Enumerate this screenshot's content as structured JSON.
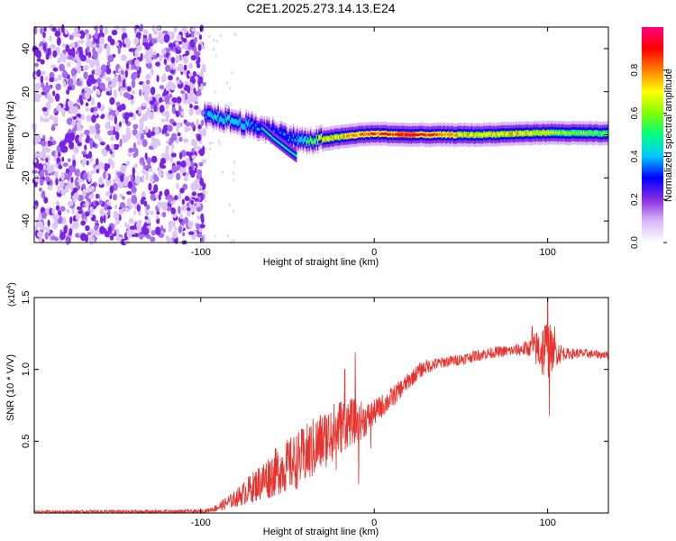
{
  "title": "C2E1.2025.273.14.13.E24",
  "chart_data": [
    {
      "type": "heatmap",
      "name": "spectrogram",
      "xlabel": "Height of straight line (km)",
      "ylabel": "Frequency (Hz)",
      "xlim": [
        -196,
        135
      ],
      "ylim": [
        -50,
        50
      ],
      "x_ticks": [
        -100,
        0,
        100
      ],
      "x_tick_labels": [
        "-100",
        "0",
        "100"
      ],
      "y_ticks": [
        -40,
        -20,
        0,
        20,
        40
      ],
      "y_tick_labels": [
        "-40",
        "-20",
        "0",
        "20",
        "40"
      ],
      "noise_region_x": [
        -196,
        -98
      ],
      "ridge": {
        "x": [
          -98,
          -90,
          -80,
          -70,
          -60,
          -50,
          -45,
          -40,
          -35,
          -30,
          -20,
          -10,
          0,
          20,
          40,
          60,
          80,
          100,
          135
        ],
        "freq": [
          9,
          8,
          6,
          4,
          2,
          -1,
          -2,
          -3,
          -3,
          -2,
          -1,
          0,
          0.5,
          0,
          0,
          0,
          0.5,
          1,
          0.5
        ],
        "amplitude": [
          0.4,
          0.45,
          0.45,
          0.4,
          0.35,
          0.3,
          0.4,
          0.5,
          0.6,
          0.7,
          0.75,
          0.8,
          0.85,
          0.9,
          0.8,
          0.7,
          0.7,
          0.65,
          0.55
        ]
      },
      "branch": {
        "x": [
          -65,
          -58,
          -50,
          -45
        ],
        "freq": [
          3,
          -2,
          -7,
          -10
        ]
      },
      "colorbar": {
        "label": "Normalized spectral amplitude",
        "ticks": [
          0.0,
          0.2,
          0.4,
          0.6,
          0.8
        ],
        "tick_labels": [
          "0.0",
          "0.2",
          "0.4",
          "0.6",
          "0.8"
        ],
        "range": [
          0,
          1
        ],
        "colors": [
          "#ffffff",
          "#d8b8f8",
          "#8a2be2",
          "#0000ff",
          "#00c8ff",
          "#00ff80",
          "#80ff00",
          "#ffff00",
          "#ff8000",
          "#ff0000",
          "#ff0080"
        ]
      }
    },
    {
      "type": "line",
      "name": "snr",
      "xlabel": "Height of straight line (km)",
      "ylabel": "SNR (10 * V/V)",
      "scale_label": "(x10",
      "scale_exp": "4",
      "scale_close": ")",
      "xlim": [
        -196,
        135
      ],
      "ylim": [
        0,
        1.5
      ],
      "x_ticks": [
        -100,
        0,
        100
      ],
      "x_tick_labels": [
        "-100",
        "0",
        "100"
      ],
      "y_ticks": [
        0.5,
        1.0,
        1.5
      ],
      "y_tick_labels": [
        "0.5",
        "1.0",
        "1.5"
      ],
      "color": "#e8332e",
      "envelope": {
        "x": [
          -196,
          -100,
          -95,
          -90,
          -85,
          -80,
          -75,
          -70,
          -65,
          -60,
          -55,
          -50,
          -45,
          -40,
          -35,
          -30,
          -25,
          -20,
          -15,
          -10,
          -5,
          0,
          5,
          10,
          15,
          20,
          25,
          30,
          40,
          50,
          60,
          70,
          80,
          85,
          90,
          95,
          100,
          105,
          110,
          120,
          135
        ],
        "y": [
          0.01,
          0.01,
          0.02,
          0.04,
          0.07,
          0.1,
          0.14,
          0.18,
          0.22,
          0.26,
          0.3,
          0.33,
          0.36,
          0.4,
          0.45,
          0.5,
          0.55,
          0.6,
          0.63,
          0.64,
          0.65,
          0.7,
          0.75,
          0.8,
          0.86,
          0.92,
          0.98,
          1.02,
          1.05,
          1.07,
          1.1,
          1.12,
          1.13,
          1.14,
          1.15,
          1.14,
          1.13,
          1.12,
          1.11,
          1.11,
          1.1
        ]
      },
      "noise_amp": {
        "x": [
          -196,
          -95,
          -80,
          -60,
          -45,
          -35,
          -20,
          -10,
          0,
          20,
          40,
          60,
          80,
          90,
          97,
          100,
          103,
          110,
          135
        ],
        "y": [
          0.008,
          0.015,
          0.06,
          0.16,
          0.2,
          0.22,
          0.2,
          0.15,
          0.09,
          0.06,
          0.04,
          0.04,
          0.04,
          0.06,
          0.2,
          0.25,
          0.12,
          0.04,
          0.025
        ]
      },
      "spikes": [
        {
          "x": -25,
          "y": 0.7
        },
        {
          "x": -22,
          "y": 0.3
        },
        {
          "x": -17,
          "y": 1.0
        },
        {
          "x": -11,
          "y": 1.12
        },
        {
          "x": -9,
          "y": 0.2
        },
        {
          "x": -2,
          "y": 0.45
        },
        {
          "x": 91,
          "y": 1.3
        },
        {
          "x": 100,
          "y": 1.5
        },
        {
          "x": 101,
          "y": 0.68
        },
        {
          "x": 104,
          "y": 1.3
        }
      ]
    }
  ]
}
